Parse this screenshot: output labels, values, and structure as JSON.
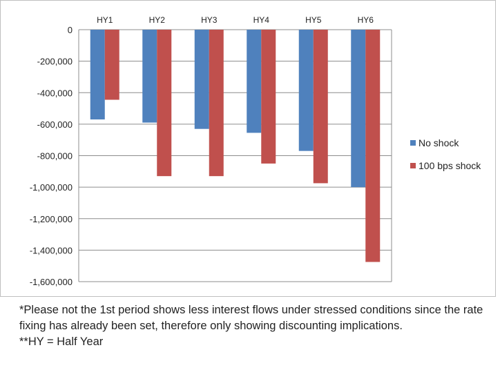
{
  "chart_data": {
    "type": "bar",
    "title": "",
    "xlabel": "",
    "ylabel": "",
    "categories": [
      "HY1",
      "HY2",
      "HY3",
      "HY4",
      "HY5",
      "HY6"
    ],
    "series": [
      {
        "name": "No shock",
        "color": "#4f81bd",
        "values": [
          -570000,
          -590000,
          -630000,
          -655000,
          -770000,
          -1000000
        ]
      },
      {
        "name": "100 bps shock",
        "color": "#c0504d",
        "values": [
          -445000,
          -930000,
          -930000,
          -850000,
          -975000,
          -1475000
        ]
      }
    ],
    "ylim": [
      -1600000,
      0
    ],
    "yticks": [
      0,
      -200000,
      -400000,
      -600000,
      -800000,
      -1000000,
      -1200000,
      -1400000,
      -1600000
    ],
    "ytick_labels": [
      "0",
      "-200,000",
      "-400,000",
      "-600,000",
      "-800,000",
      "-1,000,000",
      "-1,200,000",
      "-1,400,000",
      "-1,600,000"
    ],
    "grid": "horizontal",
    "legend_position": "right",
    "category_labels_position": "top"
  },
  "notes": {
    "line1": "*Please not the 1st period shows less interest flows under stressed conditions since the rate fixing has already been set, therefore  only showing discounting implications.",
    "line2": "**HY = Half Year"
  }
}
